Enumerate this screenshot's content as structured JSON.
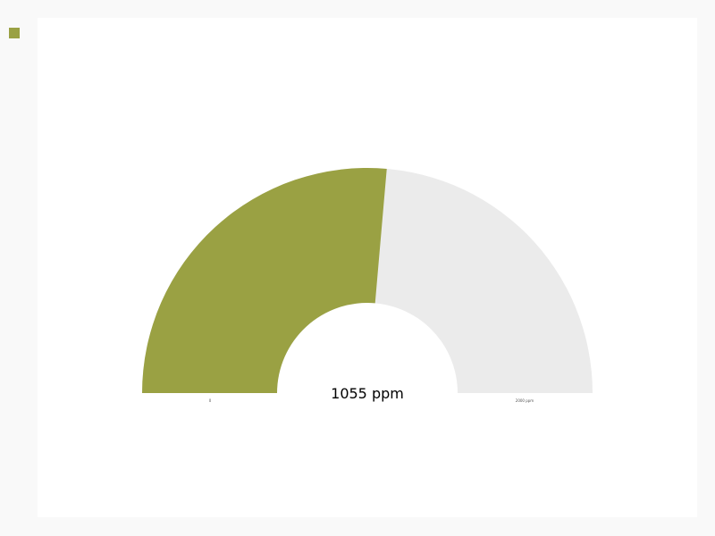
{
  "chart_data": {
    "type": "gauge",
    "value": 1055,
    "min": 0,
    "max": 2000,
    "unit": "ppm",
    "value_label": "1055 ppm",
    "min_label": "0",
    "max_label": "2000 ppm",
    "colors": {
      "filled": "#9aa143",
      "track": "#ebebeb",
      "legend": "#9aa143"
    }
  }
}
